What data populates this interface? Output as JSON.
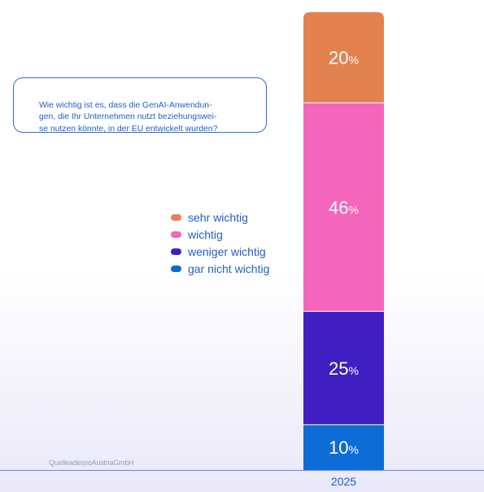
{
  "question": "Wie wichtig ist es, dass die GenAI-Anwendun-\ngen, die Ihr Unternehmen nutzt beziehungswei-\nse nutzen könnte, in der EU entwickelt wurden?",
  "source": "QuelleadessoAustriaGmbH",
  "colors": {
    "sehr_wichtig": "#e3824e",
    "wichtig": "#f466bb",
    "weniger_wichtig": "#3f1fc2",
    "gar_nicht_wichtig": "#0d6cd6",
    "text_blue": "#1f5fc8",
    "axis": "#6f86e0"
  },
  "chart_data": {
    "type": "bar",
    "stacked": true,
    "categories": [
      "2025"
    ],
    "series": [
      {
        "name": "sehr wichtig",
        "values": [
          20
        ],
        "label": "20",
        "color": "#e3824e"
      },
      {
        "name": "wichtig",
        "values": [
          46
        ],
        "label": "46",
        "color": "#f466bb"
      },
      {
        "name": "weniger wichtig",
        "values": [
          25
        ],
        "label": "25",
        "color": "#3f1fc2"
      },
      {
        "name": "gar nicht wichtig",
        "values": [
          10
        ],
        "label": "10",
        "color": "#0d6cd6"
      }
    ],
    "unit": "%",
    "legend_order": [
      "sehr wichtig",
      "wichtig",
      "weniger wichtig",
      "gar nicht wichtig"
    ],
    "legend_colors": [
      "#e3824e",
      "#f466bb",
      "#3f1fc2",
      "#0d6cd6"
    ],
    "legend_position": "left",
    "grid": false
  }
}
